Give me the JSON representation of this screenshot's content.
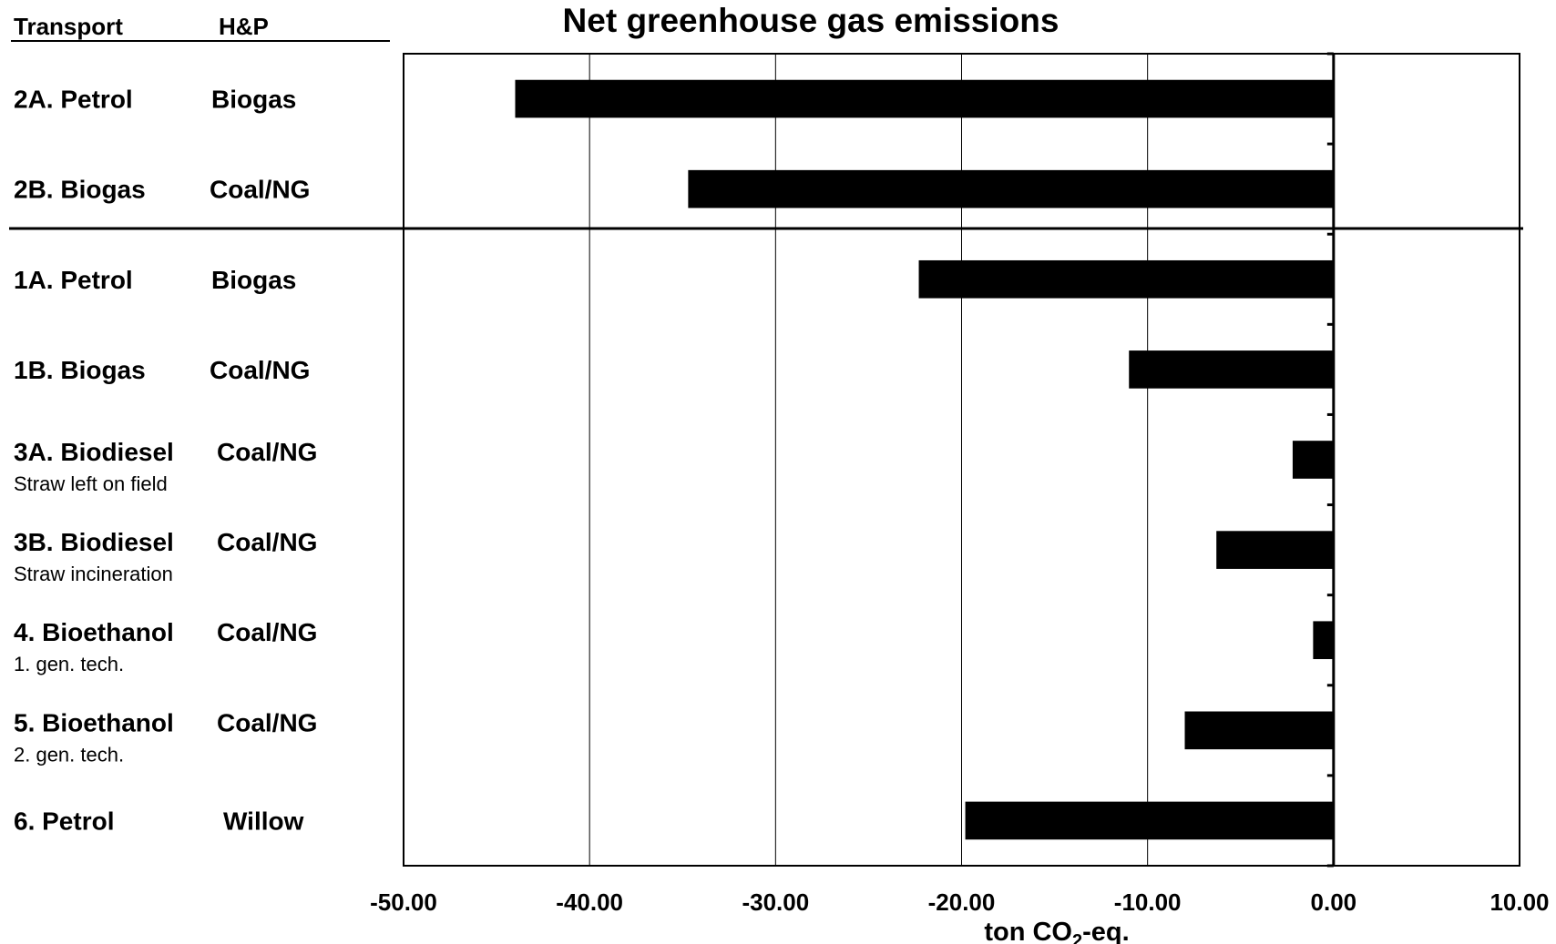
{
  "chart_data": {
    "type": "bar",
    "orientation": "horizontal",
    "title": "Net greenhouse gas emissions",
    "xlabel_main": "ton CO",
    "xlabel_sub": "2",
    "xlabel_tail": "-eq.",
    "header_transport": "Transport",
    "header_hp": "H&P",
    "xlim": [
      -50,
      10
    ],
    "xticks": [
      "-50.00",
      "-40.00",
      "-30.00",
      "-20.00",
      "-10.00",
      "0.00",
      "10.00"
    ],
    "xtick_values": [
      -50,
      -40,
      -30,
      -20,
      -10,
      0,
      10
    ],
    "grid": true,
    "bar_color": "#000000",
    "categories": [
      {
        "transport": "2A. Petrol",
        "hp": "Biogas",
        "note": "",
        "value": -44.0
      },
      {
        "transport": "2B. Biogas",
        "hp": "Coal/NG",
        "note": "",
        "value": -34.7
      },
      {
        "transport": "1A. Petrol",
        "hp": "Biogas",
        "note": "",
        "value": -22.3
      },
      {
        "transport": "1B. Biogas",
        "hp": "Coal/NG",
        "note": "",
        "value": -11.0
      },
      {
        "transport": "3A. Biodiesel",
        "hp": "Coal/NG",
        "note": "Straw left on field",
        "value": -2.2
      },
      {
        "transport": "3B. Biodiesel",
        "hp": "Coal/NG",
        "note": "Straw incineration",
        "value": -6.3
      },
      {
        "transport": "4.  Bioethanol",
        "hp": "Coal/NG",
        "note": "1. gen. tech.",
        "value": -1.1
      },
      {
        "transport": "5.  Bioethanol",
        "hp": "Coal/NG",
        "note": "2. gen. tech.",
        "value": -8.0
      },
      {
        "transport": "6.  Petrol",
        "hp": "Willow",
        "note": "",
        "value": -19.8
      }
    ]
  }
}
